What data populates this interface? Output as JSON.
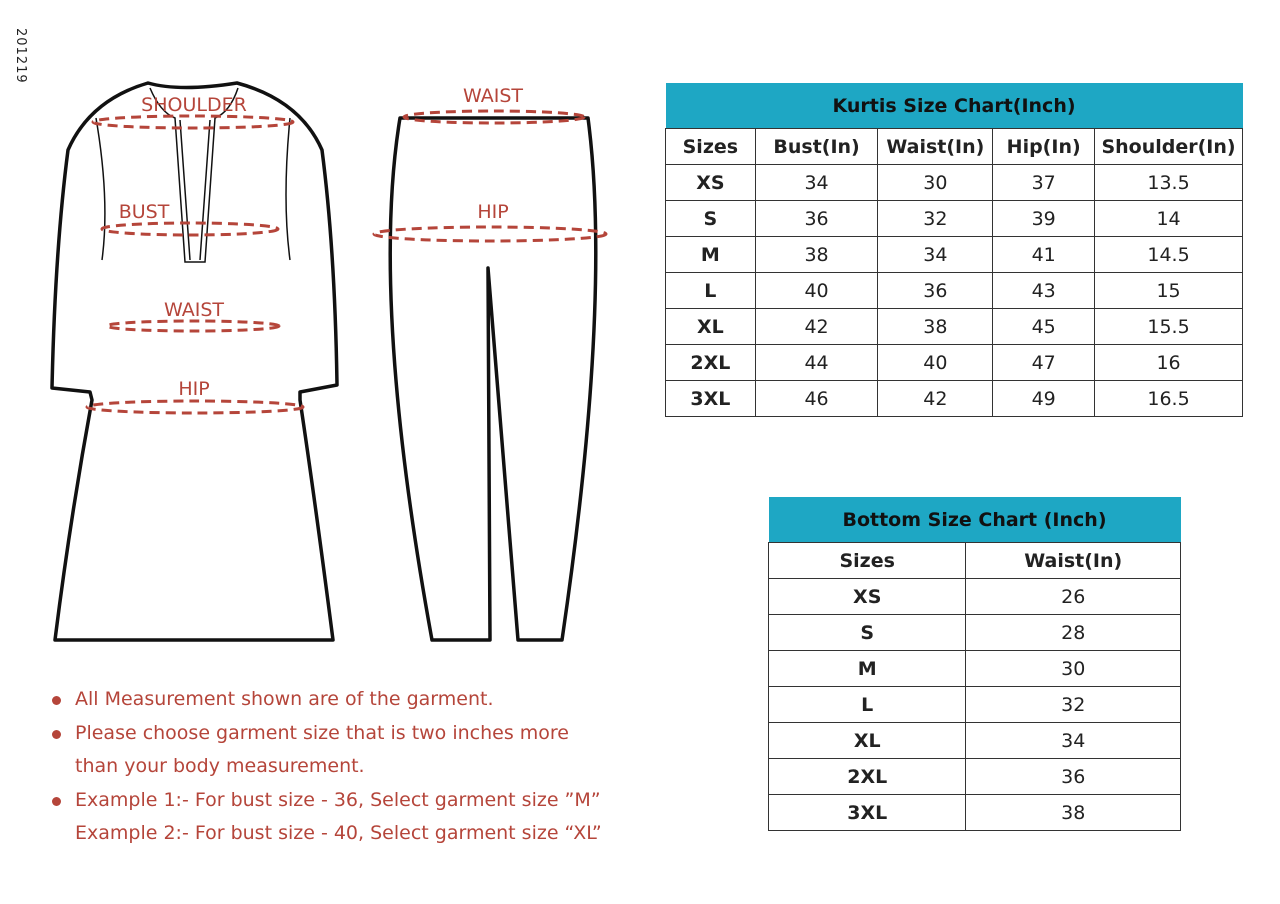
{
  "code": "201219",
  "diagram_labels": {
    "shoulder": "SHOULDER",
    "bust": "BUST",
    "kurti_waist": "WAIST",
    "kurti_hip": "HIP",
    "pant_waist": "WAIST",
    "pant_hip": "HIP"
  },
  "colors": {
    "accent": "#1ea7c4",
    "label": "#b5453a"
  },
  "kurti_table": {
    "title": "Kurtis Size Chart(Inch)",
    "headers": [
      "Sizes",
      "Bust(In)",
      "Waist(In)",
      "Hip(In)",
      "Shoulder(In)"
    ],
    "rows": [
      [
        "XS",
        "34",
        "30",
        "37",
        "13.5"
      ],
      [
        "S",
        "36",
        "32",
        "39",
        "14"
      ],
      [
        "M",
        "38",
        "34",
        "41",
        "14.5"
      ],
      [
        "L",
        "40",
        "36",
        "43",
        "15"
      ],
      [
        "XL",
        "42",
        "38",
        "45",
        "15.5"
      ],
      [
        "2XL",
        "44",
        "40",
        "47",
        "16"
      ],
      [
        "3XL",
        "46",
        "42",
        "49",
        "16.5"
      ]
    ]
  },
  "bottom_table": {
    "title": "Bottom Size Chart (Inch)",
    "headers": [
      "Sizes",
      "Waist(In)"
    ],
    "rows": [
      [
        "XS",
        "26"
      ],
      [
        "S",
        "28"
      ],
      [
        "M",
        "30"
      ],
      [
        "L",
        "32"
      ],
      [
        "XL",
        "34"
      ],
      [
        "2XL",
        "36"
      ],
      [
        "3XL",
        "38"
      ]
    ]
  },
  "notes": [
    {
      "bullet": true,
      "text": "All Measurement shown are of the garment."
    },
    {
      "bullet": true,
      "text": "Please choose garment size that is two inches more"
    },
    {
      "bullet": false,
      "text": "than your body measurement."
    },
    {
      "bullet": true,
      "text": "Example 1:- For bust size - 36, Select garment size ”M”"
    },
    {
      "bullet": false,
      "text": "Example 2:- For bust size - 40, Select garment size  “XL”"
    }
  ]
}
